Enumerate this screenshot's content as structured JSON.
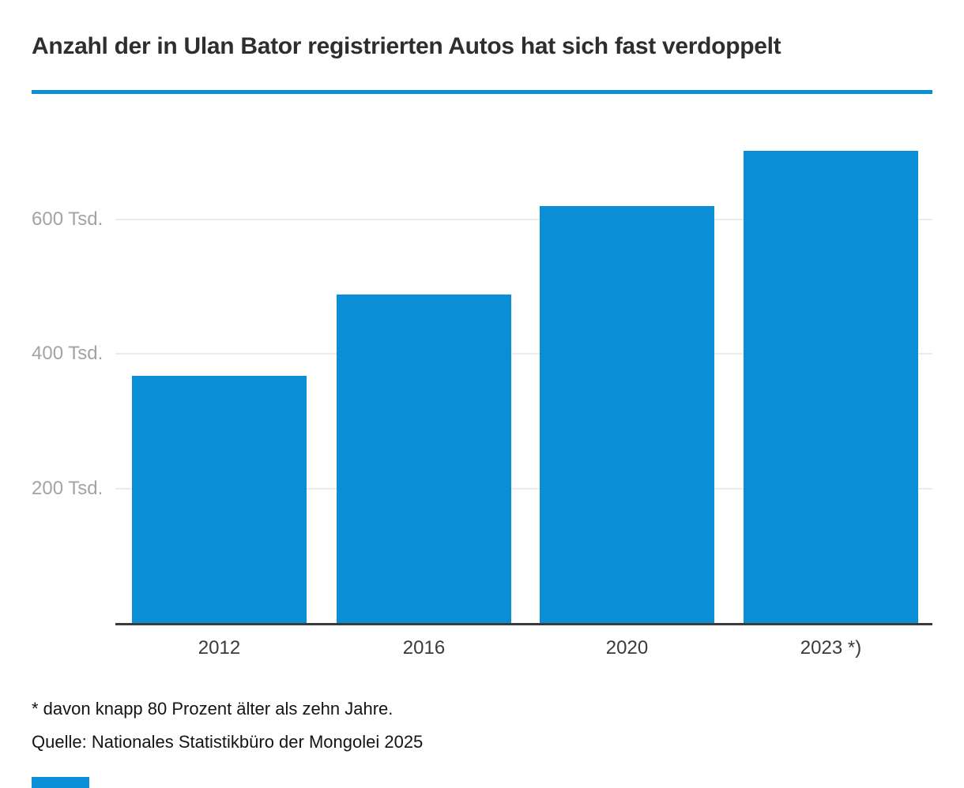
{
  "header": {
    "title": "Anzahl der in Ulan Bator registrierten Autos hat sich fast verdoppelt"
  },
  "chart_data": {
    "type": "bar",
    "title": "Anzahl der in Ulan Bator registrierten Autos hat sich fast verdoppelt",
    "categories": [
      "2012",
      "2016",
      "2020",
      "2023 *)"
    ],
    "values": [
      367,
      488,
      619,
      701
    ],
    "unit": "Tsd.",
    "xlabel": "",
    "ylabel": "",
    "ylim": [
      0,
      735
    ],
    "yticks": [
      {
        "value": 200,
        "label": "200 Tsd."
      },
      {
        "value": 400,
        "label": "400 Tsd."
      },
      {
        "value": 600,
        "label": "600 Tsd."
      }
    ],
    "grid": "horizontal",
    "legend_position": "none",
    "bar_color": "#0a8ed6"
  },
  "footer": {
    "footnote": "* davon knapp 80 Prozent älter als zehn Jahre.",
    "source": "Quelle: Nationales Statistikbüro der Mongolei 2025"
  },
  "colors": {
    "accent_blue": "#0a8ed6",
    "grid_gray": "#ebebeb",
    "axis_dark": "#3b3b3b",
    "ytick_gray": "#a3a3a3",
    "xtick_dark": "#3a3a3a",
    "title_dark": "#2e2e2e"
  }
}
